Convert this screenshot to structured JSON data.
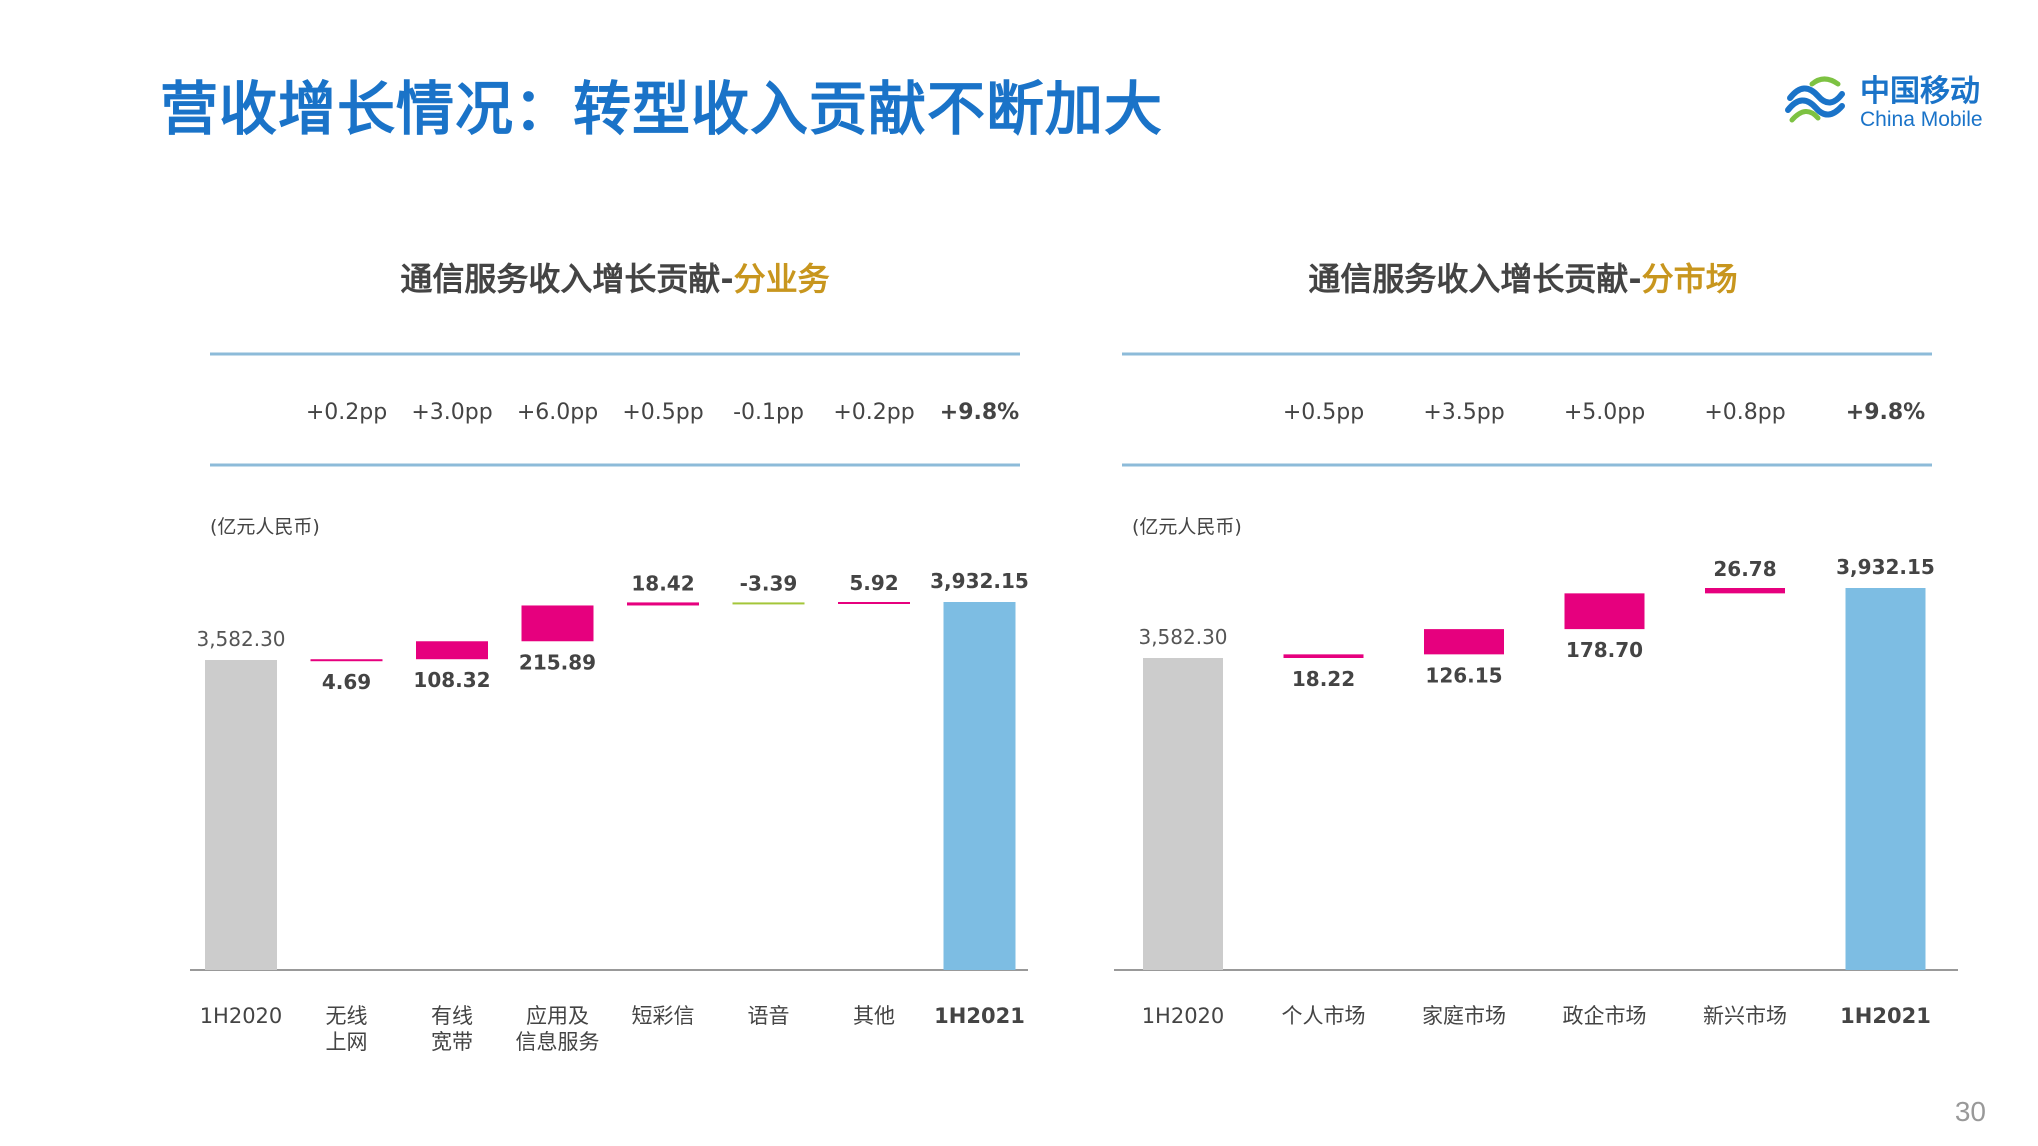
{
  "page": {
    "title": "营收增长情况：转型收入贡献不断加大",
    "page_number": "30"
  },
  "logo": {
    "cn": "中国移动",
    "en": "China Mobile"
  },
  "colors": {
    "title_blue": "#1a73c8",
    "highlight": "#c8961e",
    "increase": "#e6007e",
    "decrease": "#a4c639",
    "start_bar": "#cccccc",
    "end_bar": "#7dbde3",
    "rule": "#8dbbd9"
  },
  "chart_data": [
    {
      "type": "bar",
      "title_prefix": "通信服务收入增长贡献-",
      "title_highlight": "分业务",
      "unit": "(亿元人民币)",
      "categories": [
        "1H2020",
        "无线\n上网",
        "有线\n宽带",
        "应用及\n信息服务",
        "短彩信",
        "语音",
        "其他",
        "1H2021"
      ],
      "values": [
        3582.3,
        4.69,
        108.32,
        215.89,
        18.42,
        -3.39,
        5.92,
        3932.15
      ],
      "labels": [
        "3,582.30",
        "4.69",
        "108.32",
        "215.89",
        "18.42",
        "-3.39",
        "5.92",
        "3,932.15"
      ],
      "pp": [
        "",
        "+0.2pp",
        "+3.0pp",
        "+6.0pp",
        "+0.5pp",
        "-0.1pp",
        "+0.2pp",
        "+9.8%"
      ]
    },
    {
      "type": "bar",
      "title_prefix": "通信服务收入增长贡献-",
      "title_highlight": "分市场",
      "unit": "(亿元人民币)",
      "categories": [
        "1H2020",
        "个人市场",
        "家庭市场",
        "政企市场",
        "新兴市场",
        "1H2021"
      ],
      "values": [
        3582.3,
        18.22,
        126.15,
        178.7,
        26.78,
        3932.15
      ],
      "labels": [
        "3,582.30",
        "18.22",
        "126.15",
        "178.70",
        "26.78",
        "3,932.15"
      ],
      "pp": [
        "",
        "+0.5pp",
        "+3.5pp",
        "+5.0pp",
        "+0.8pp",
        "+9.8%"
      ]
    }
  ]
}
